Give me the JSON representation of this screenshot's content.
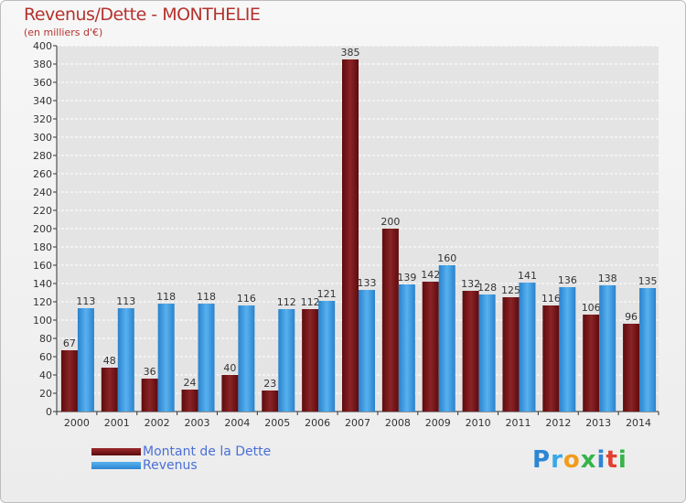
{
  "header": {
    "title": "Revenus/Dette - MONTHELIE",
    "subtitle": "(en milliers d'€)"
  },
  "chart_data": {
    "type": "bar",
    "categories": [
      "2000",
      "2001",
      "2002",
      "2003",
      "2004",
      "2005",
      "2006",
      "2007",
      "2008",
      "2009",
      "2010",
      "2011",
      "2012",
      "2013",
      "2014"
    ],
    "series": [
      {
        "name": "Montant de la Dette",
        "values": [
          67,
          48,
          36,
          24,
          40,
          23,
          112,
          385,
          200,
          142,
          132,
          125,
          116,
          106,
          96
        ],
        "color": "#7d1416"
      },
      {
        "name": "Revenus",
        "values": [
          113,
          113,
          118,
          118,
          116,
          112,
          121,
          133,
          139,
          160,
          128,
          141,
          136,
          138,
          135
        ],
        "color": "#3b9be6"
      }
    ],
    "ylim": [
      0,
      400
    ],
    "yticks": [
      0,
      20,
      40,
      60,
      80,
      100,
      120,
      140,
      160,
      180,
      200,
      220,
      240,
      260,
      280,
      300,
      320,
      340,
      360,
      380,
      400
    ],
    "grid": true,
    "legend": "bottom-left"
  },
  "legend": {
    "items": [
      {
        "label": "Montant de la Dette",
        "color": "#7d1416"
      },
      {
        "label": "Revenus",
        "color": "#3b9be6"
      }
    ]
  },
  "logo": {
    "parts": [
      "P",
      "r",
      "o",
      "x",
      "i",
      "t",
      "i"
    ]
  }
}
